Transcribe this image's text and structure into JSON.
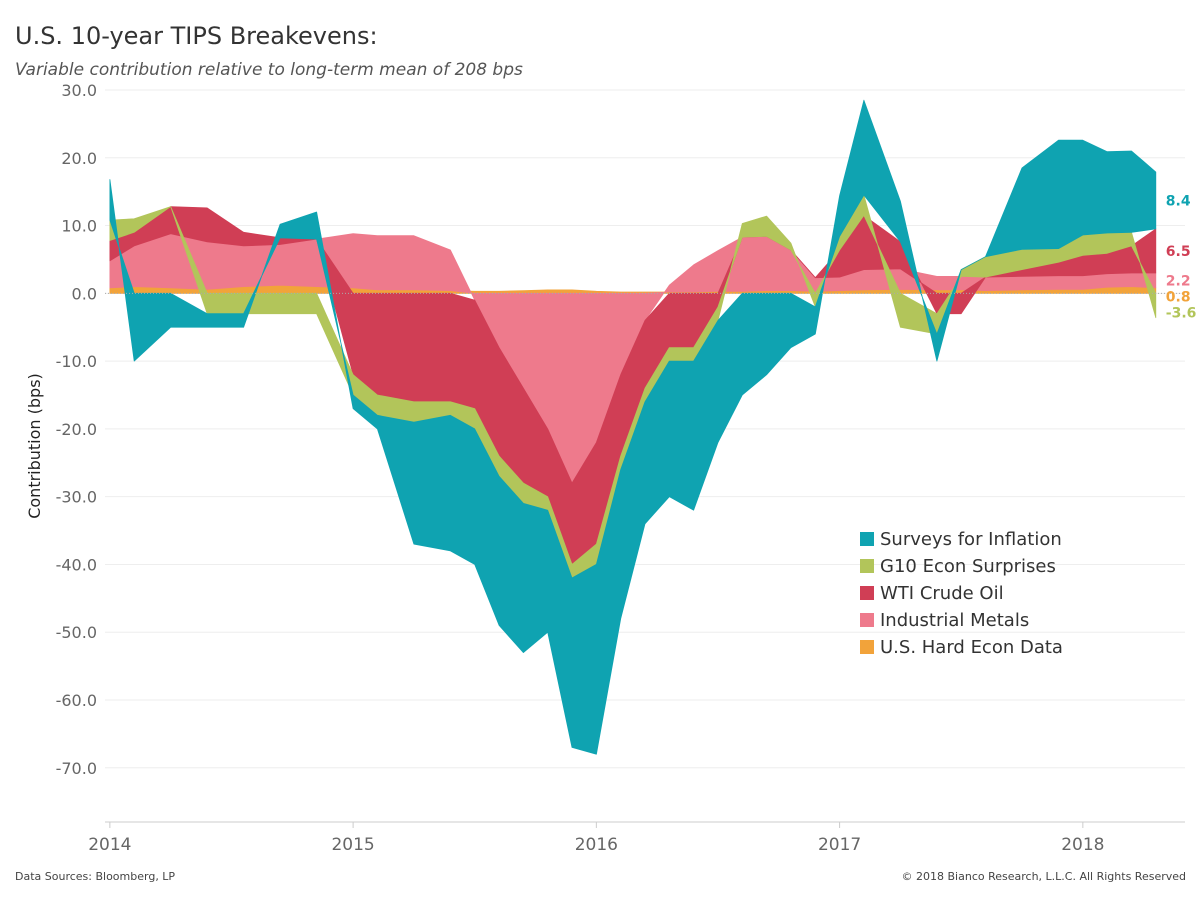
{
  "title": "U.S. 10-year TIPS Breakevens:",
  "subtitle": "Variable contribution relative to long-term mean of 208 bps",
  "footer": {
    "left": "Data Sources: Bloomberg, LP",
    "right": "© 2018 Bianco Research, L.L.C. All Rights Reserved"
  },
  "chart_data": {
    "type": "area",
    "stacked": true,
    "ylabel": "Contribution (bps)",
    "ylim": [
      -78,
      30
    ],
    "yticks": [
      30,
      20,
      10,
      0,
      -10,
      -20,
      -30,
      -40,
      -50,
      -60,
      -70
    ],
    "ytick_labels": [
      "30.0",
      "20.0",
      "10.0",
      "0.0",
      "-10.0",
      "-20.0",
      "-30.0",
      "-40.0",
      "-50.0",
      "-60.0",
      "-70.0"
    ],
    "xticks": [
      2014,
      2015,
      2016,
      2017,
      2018
    ],
    "xtick_labels": [
      "2014",
      "2015",
      "2016",
      "2017",
      "2018"
    ],
    "xlim": [
      2013.98,
      2018.42
    ],
    "legend_position": "lower-right",
    "x": [
      2014.0,
      2014.1,
      2014.25,
      2014.4,
      2014.55,
      2014.7,
      2014.85,
      2015.0,
      2015.1,
      2015.25,
      2015.4,
      2015.5,
      2015.6,
      2015.7,
      2015.8,
      2015.9,
      2016.0,
      2016.1,
      2016.2,
      2016.3,
      2016.4,
      2016.5,
      2016.6,
      2016.7,
      2016.8,
      2016.9,
      2017.0,
      2017.1,
      2017.25,
      2017.4,
      2017.5,
      2017.6,
      2017.75,
      2017.9,
      2018.0,
      2018.1,
      2018.2,
      2018.3
    ],
    "series": [
      {
        "name": "U.S. Hard Econ Data",
        "color": "#F2A33A",
        "end_label": "0.8",
        "values": [
          0.8,
          1.0,
          0.8,
          0.6,
          1.0,
          1.2,
          1.0,
          0.8,
          0.5,
          0.5,
          0.4,
          0.3,
          0.3,
          0.4,
          0.5,
          0.5,
          0.3,
          0.2,
          0.2,
          0.2,
          0.2,
          0.3,
          0.3,
          0.4,
          0.4,
          0.3,
          0.4,
          0.5,
          0.6,
          0.5,
          0.5,
          0.4,
          0.5,
          0.6,
          0.6,
          0.9,
          1.0,
          0.8
        ]
      },
      {
        "name": "Industrial Metals",
        "color": "#EE7A8C",
        "end_label": "2.2",
        "values": [
          4,
          6,
          8,
          7,
          6,
          6,
          7,
          8,
          8,
          8,
          6,
          -1,
          -8,
          -14,
          -20,
          -28,
          -22,
          -12,
          -4,
          1,
          4,
          6,
          8,
          8,
          6,
          2,
          2,
          3,
          3,
          2,
          2,
          2,
          2,
          2,
          2,
          2,
          2,
          2.2
        ]
      },
      {
        "name": "WTI Crude Oil",
        "color": "#D03E55",
        "end_label": "6.5",
        "values": [
          3,
          2,
          4,
          5,
          2,
          1,
          0,
          -12,
          -15,
          -16,
          -16,
          -16,
          -16,
          -14,
          -10,
          -12,
          -15,
          -12,
          -10,
          -8,
          -8,
          -2,
          0,
          0,
          0,
          0,
          4,
          8,
          4,
          -3,
          -3,
          0,
          1,
          2,
          3,
          3,
          4,
          6.5
        ]
      },
      {
        "name": "G10 Econ Surprises",
        "color": "#B2C55A",
        "end_label": "-3.6",
        "values": [
          3,
          2,
          0,
          -3,
          -3,
          -3,
          -3,
          -3,
          -3,
          -3,
          -2,
          -3,
          -3,
          -3,
          -2,
          -2,
          -3,
          -2,
          -2,
          -2,
          -2,
          -2,
          2,
          3,
          1,
          -2,
          2,
          3,
          -5,
          -3,
          1,
          3,
          3,
          2,
          3,
          3,
          2,
          -3.6
        ]
      },
      {
        "name": "Surveys for Inflation",
        "color": "#0FA3B1",
        "end_label": "8.4",
        "values": [
          6,
          -10,
          -5,
          -2,
          -2,
          2,
          4,
          -2,
          -2,
          -18,
          -20,
          -20,
          -22,
          -22,
          -18,
          -25,
          -28,
          -22,
          -18,
          -20,
          -22,
          -18,
          -15,
          -12,
          -8,
          -4,
          6,
          14,
          6,
          -4,
          0,
          0,
          12,
          16,
          14,
          12,
          12,
          8.4
        ]
      }
    ]
  }
}
